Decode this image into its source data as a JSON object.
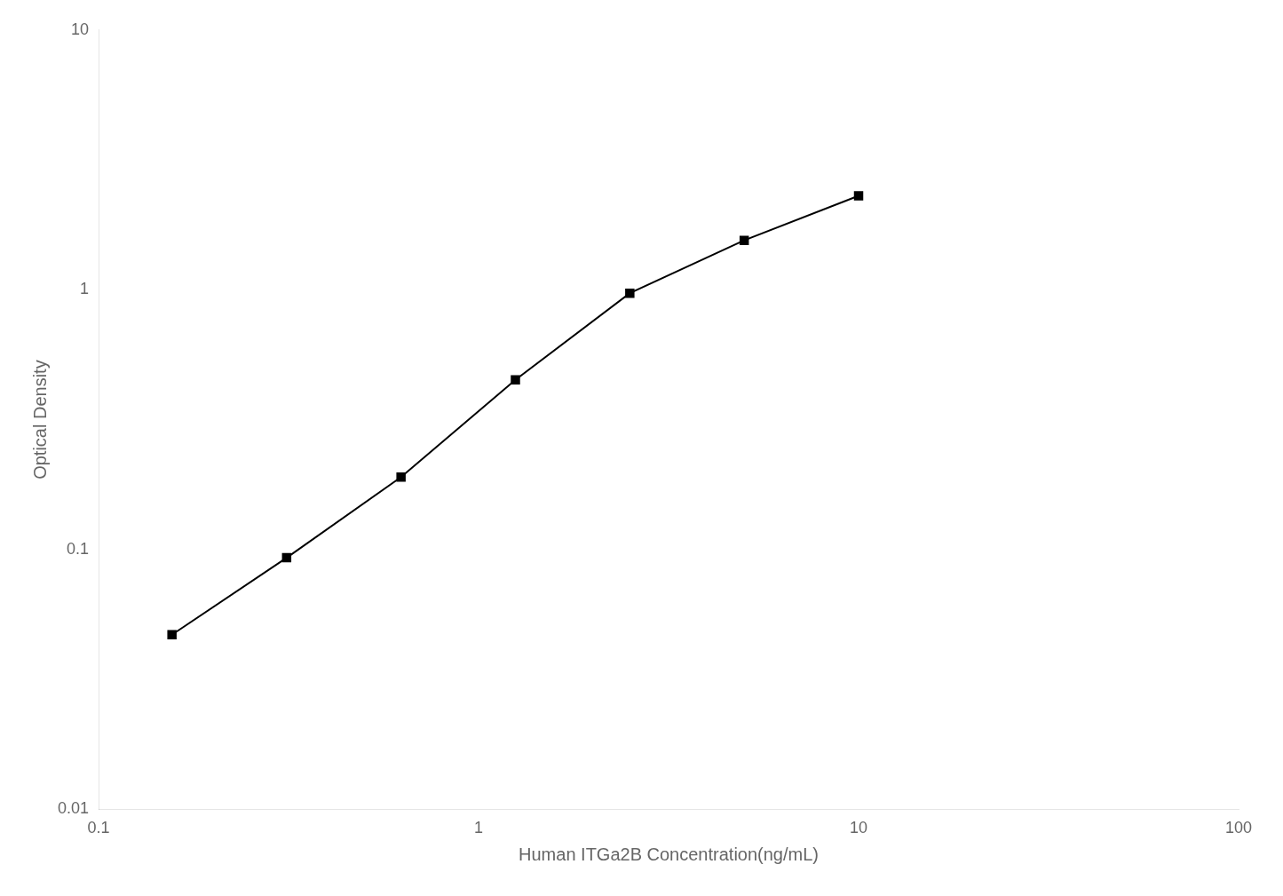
{
  "chart_data": {
    "type": "line",
    "x": [
      0.156,
      0.3125,
      0.625,
      1.25,
      2.5,
      5.0,
      10.0
    ],
    "values": [
      0.047,
      0.093,
      0.19,
      0.45,
      0.97,
      1.55,
      2.3
    ],
    "xlabel": "Human ITGa2B Concentration(ng/mL)",
    "ylabel": "Optical Density",
    "xlim": [
      0.1,
      100
    ],
    "ylim": [
      0.01,
      10
    ],
    "xticks": [
      0.1,
      1,
      10,
      100
    ],
    "yticks": [
      0.01,
      0.1,
      1,
      10
    ],
    "log": true,
    "grid": false,
    "color": "#000000",
    "marker": "square"
  }
}
